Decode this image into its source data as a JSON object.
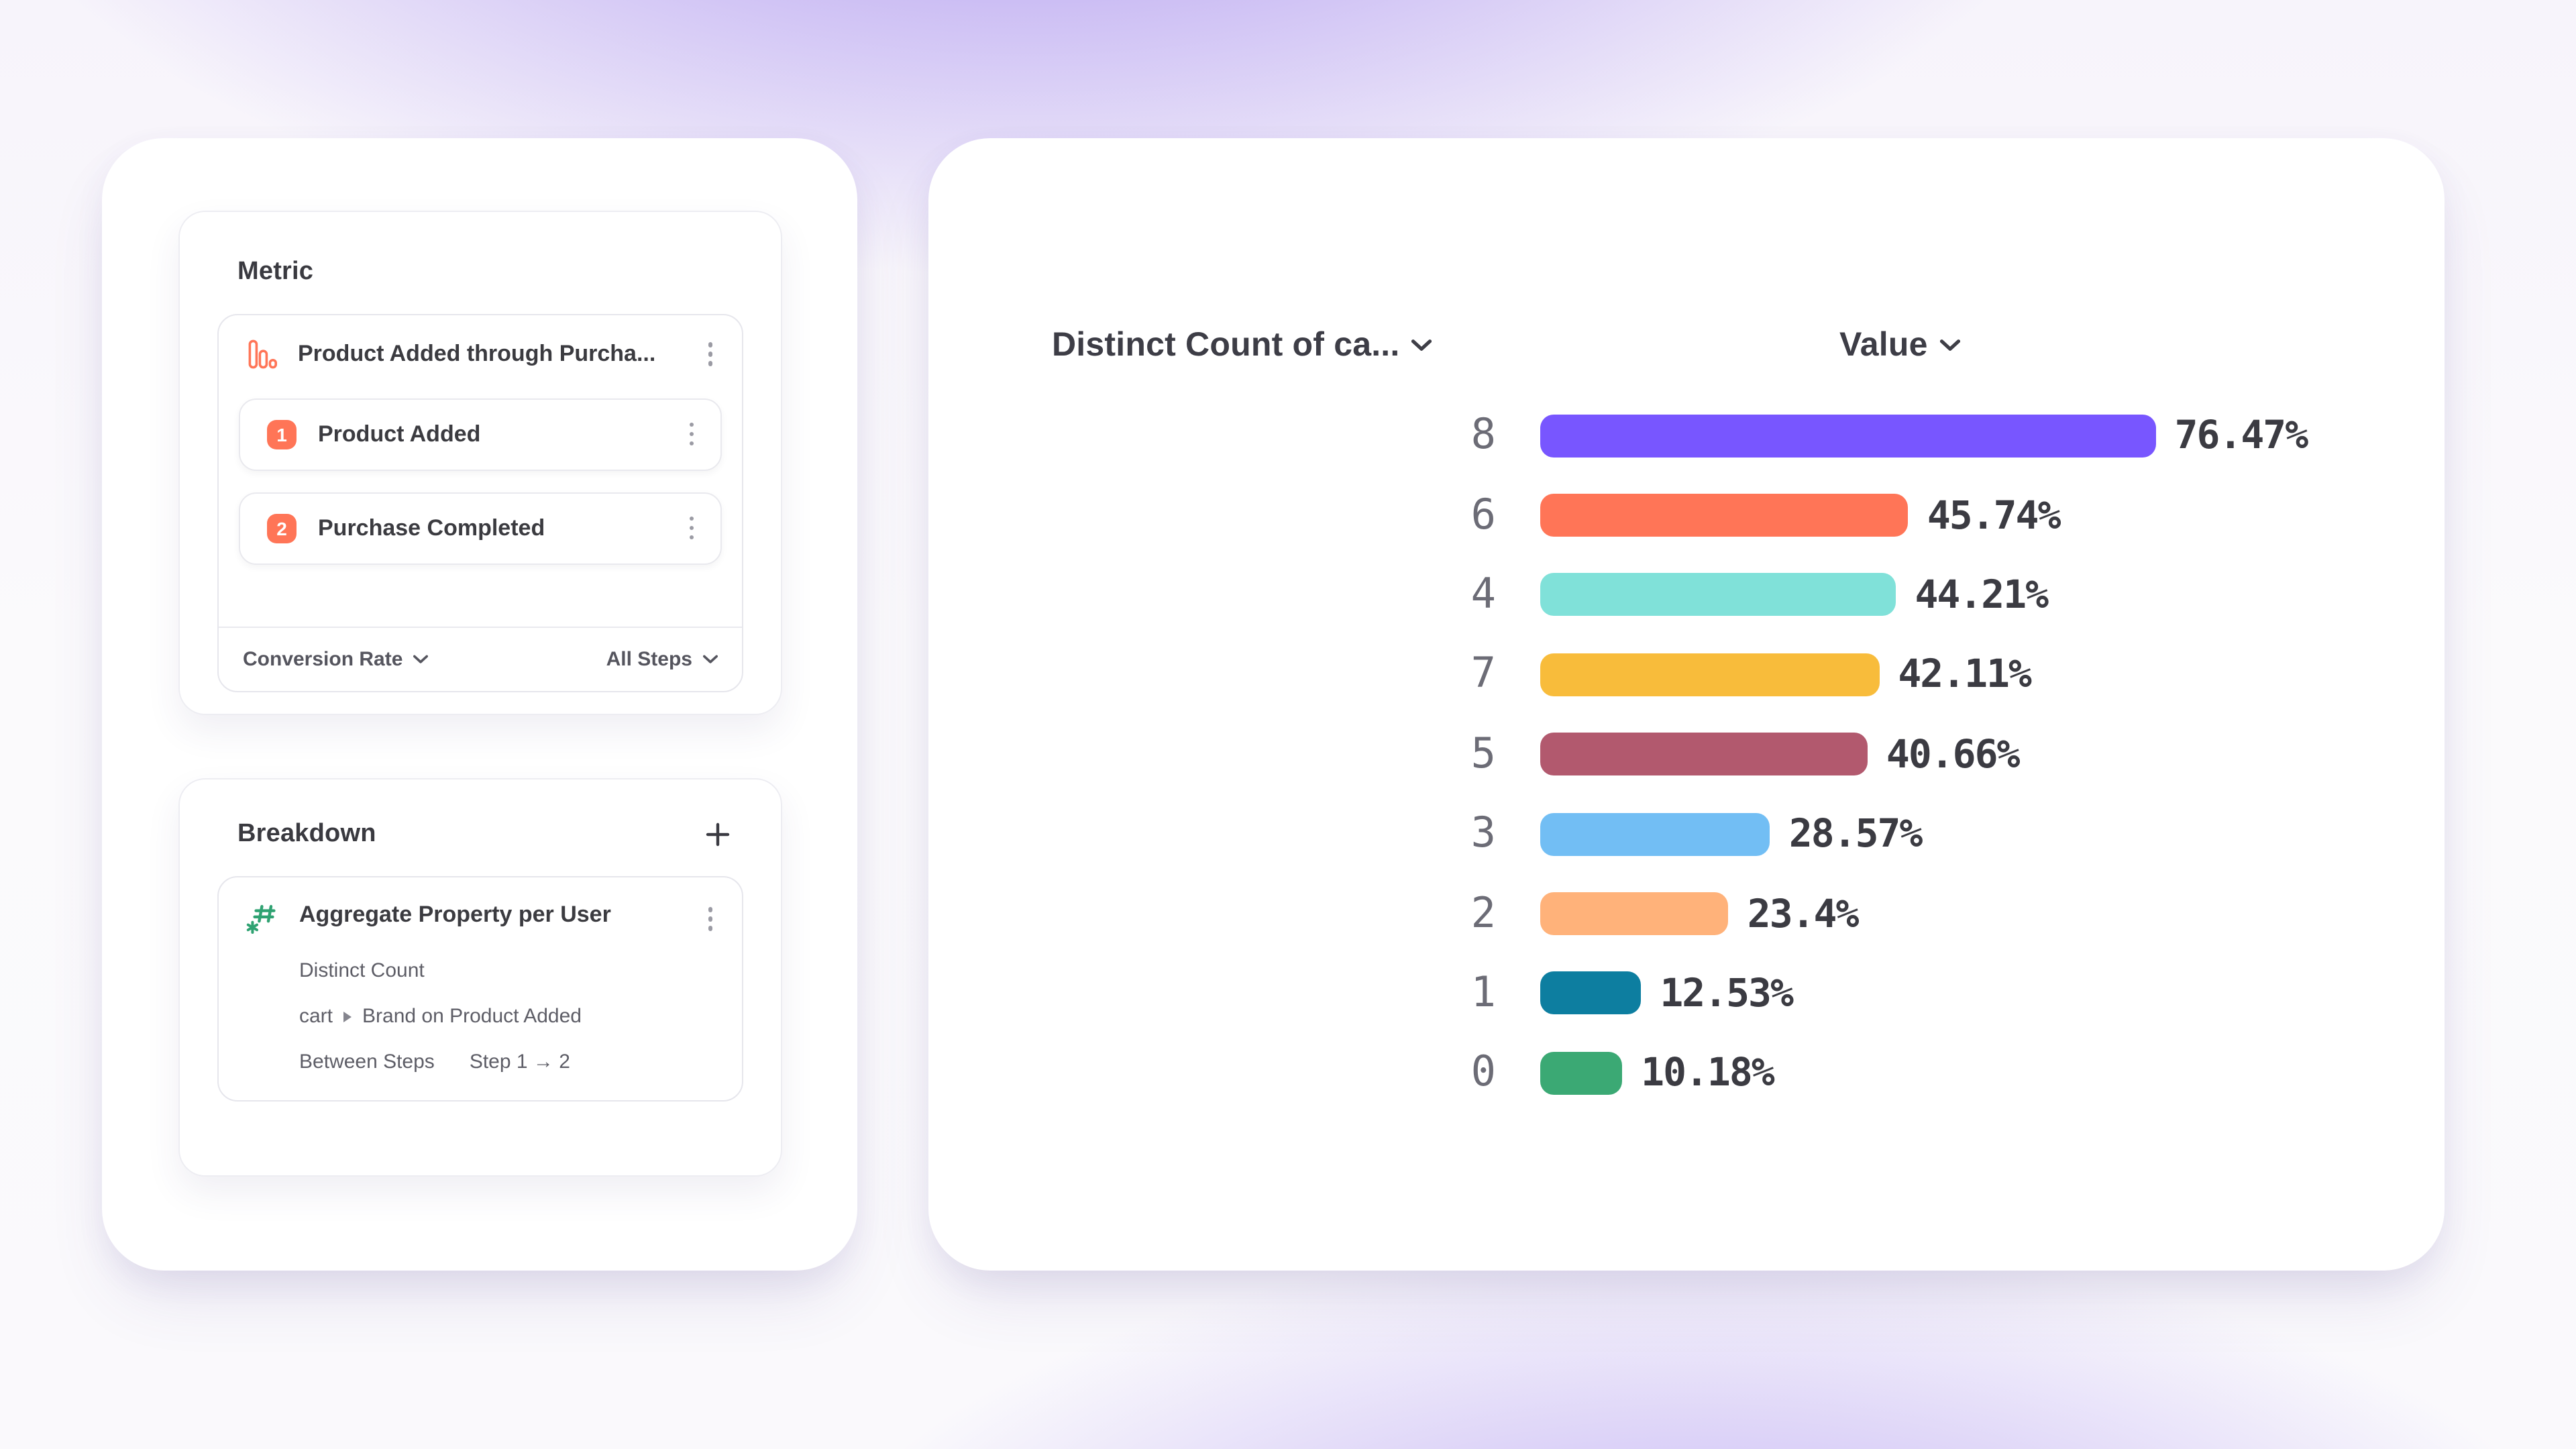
{
  "colors": {
    "accent_orange": "#FF7557",
    "icon_green": "#2FA272",
    "purple_glow": "#8261E8"
  },
  "metric_card": {
    "title": "Metric",
    "funnel": {
      "title": "Product Added through Purcha...",
      "steps": [
        {
          "index": "1",
          "label": "Product Added"
        },
        {
          "index": "2",
          "label": "Purchase Completed"
        }
      ],
      "measure_label": "Conversion Rate",
      "steps_filter_label": "All Steps"
    }
  },
  "breakdown_card": {
    "title": "Breakdown",
    "add_icon": "+",
    "item": {
      "title": "Aggregate Property per User",
      "aggregation": "Distinct Count",
      "property_parent": "cart",
      "property_rest": "Brand on Product Added",
      "scope_label": "Between Steps",
      "scope_value": "Step 1 → 2"
    }
  },
  "chart": {
    "column1_header": "Distinct Count of ca...",
    "column2_header": "Value",
    "rows": [
      {
        "label": "8",
        "value": 76.47,
        "display": "76.47%",
        "color": "#7856FF"
      },
      {
        "label": "6",
        "value": 45.74,
        "display": "45.74%",
        "color": "#FF7557"
      },
      {
        "label": "4",
        "value": 44.21,
        "display": "44.21%",
        "color": "#80E1D9"
      },
      {
        "label": "7",
        "value": 42.11,
        "display": "42.11%",
        "color": "#F8BC3B"
      },
      {
        "label": "5",
        "value": 40.66,
        "display": "40.66%",
        "color": "#B2596E"
      },
      {
        "label": "3",
        "value": 28.57,
        "display": "28.57%",
        "color": "#72BEF4"
      },
      {
        "label": "2",
        "value": 23.4,
        "display": "23.4%",
        "color": "#FFB27A"
      },
      {
        "label": "1",
        "value": 12.53,
        "display": "12.53%",
        "color": "#0D7EA0"
      },
      {
        "label": "0",
        "value": 10.18,
        "display": "10.18%",
        "color": "#3BA974"
      }
    ]
  },
  "chart_data": {
    "type": "bar",
    "orientation": "horizontal",
    "title": "",
    "xlabel": "Value",
    "ylabel": "Distinct Count of ca...",
    "categories": [
      "8",
      "6",
      "4",
      "7",
      "5",
      "3",
      "2",
      "1",
      "0"
    ],
    "values": [
      76.47,
      45.74,
      44.21,
      42.11,
      40.66,
      28.57,
      23.4,
      12.53,
      10.18
    ],
    "value_labels": [
      "76.47%",
      "45.74%",
      "44.21%",
      "42.11%",
      "40.66%",
      "28.57%",
      "23.4%",
      "12.53%",
      "10.18%"
    ],
    "colors": [
      "#7856FF",
      "#FF7557",
      "#80E1D9",
      "#F8BC3B",
      "#B2596E",
      "#72BEF4",
      "#FFB27A",
      "#0D7EA0",
      "#3BA974"
    ],
    "xlim": [
      0,
      100
    ],
    "grid": false,
    "legend": false
  }
}
